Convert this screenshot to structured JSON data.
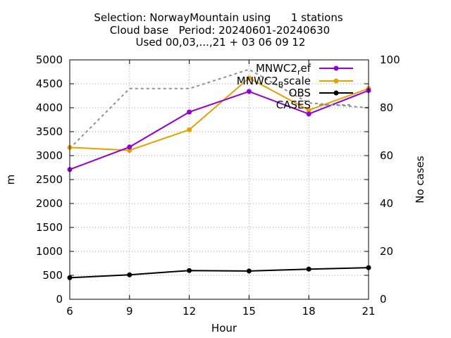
{
  "colors": {
    "mnwc2_ref": "#9400d3",
    "mnwc2_scale": "#e6a000",
    "obs": "#000000",
    "cases": "#909090",
    "grid": "#a0a0a0"
  },
  "chart_data": {
    "type": "line",
    "title_lines": [
      "Selection: NorwayMountain using      1 stations",
      "Cloud base   Period: 20240601-20240630",
      "Used 00,03,...,21 + 03 06 09 12"
    ],
    "xlabel": "Hour",
    "ylabel": "m",
    "y2label": "No cases",
    "x": [
      6,
      9,
      12,
      15,
      18,
      21
    ],
    "xlim": [
      6,
      21
    ],
    "ylim": [
      0,
      5000
    ],
    "y2lim": [
      0,
      100
    ],
    "xticks": [
      "6",
      "9",
      "12",
      "15",
      "18",
      "21"
    ],
    "yticks": [
      "0",
      "500",
      "1000",
      "1500",
      "2000",
      "2500",
      "3000",
      "3500",
      "4000",
      "4500",
      "5000"
    ],
    "y2ticks": [
      "0",
      "20",
      "40",
      "60",
      "80",
      "100"
    ],
    "grid": true,
    "legend_position": "top-right",
    "series": [
      {
        "name": "MNWC2",
        "name_sub": "r",
        "name_rest": "ef",
        "axis": "y",
        "style": "line-points",
        "values": [
          2710,
          3180,
          3910,
          4340,
          3870,
          4360
        ]
      },
      {
        "name": "MNWC2",
        "name_sub": "B",
        "name_rest": "scale",
        "axis": "y",
        "style": "line-points",
        "values": [
          3170,
          3110,
          3540,
          4620,
          3950,
          4400
        ]
      },
      {
        "name": "OBS",
        "axis": "y",
        "style": "line-points",
        "values": [
          450,
          510,
          600,
          590,
          630,
          660
        ]
      },
      {
        "name": "CASES",
        "axis": "y2",
        "style": "dashed",
        "values": [
          63,
          88,
          88,
          96,
          82,
          80
        ]
      }
    ]
  }
}
